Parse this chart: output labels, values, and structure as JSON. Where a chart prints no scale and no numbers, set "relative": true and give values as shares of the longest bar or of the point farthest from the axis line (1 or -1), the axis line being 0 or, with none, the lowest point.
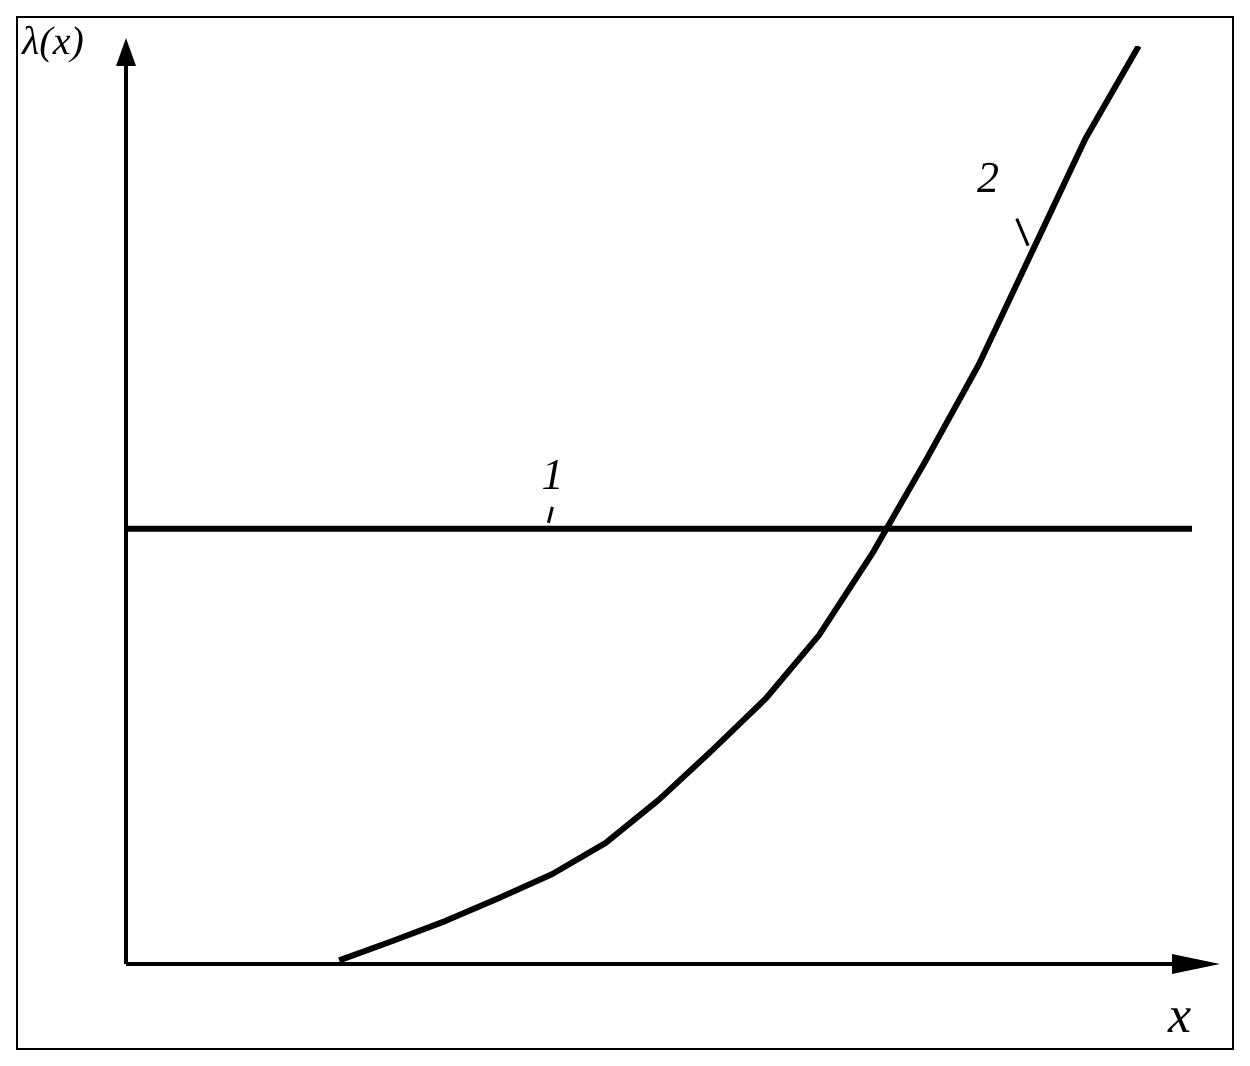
{
  "chart_data": {
    "type": "line",
    "xlabel": "x",
    "ylabel": "λ(x)",
    "relative": true,
    "marker": "none",
    "line_style": "solid",
    "categories": [
      null,
      null,
      null,
      null,
      null,
      null,
      null,
      null,
      null,
      null,
      null,
      null,
      null,
      null,
      null,
      null,
      null,
      null,
      null,
      null,
      null
    ],
    "series": [
      {
        "name": "1",
        "color": "#000000",
        "values": [
          0.474,
          0.474,
          0.474,
          0.474,
          0.474,
          0.474,
          0.474,
          0.474,
          0.474,
          0.474,
          0.474,
          0.474,
          0.474,
          0.474,
          0.474,
          0.474,
          0.474,
          0.474,
          0.474,
          0.474,
          0.474
        ]
      },
      {
        "name": "2",
        "color": "#000000",
        "values": [
          null,
          null,
          null,
          null,
          0.004,
          0.025,
          0.047,
          0.072,
          0.098,
          0.132,
          0.179,
          0.233,
          0.289,
          0.358,
          0.447,
          0.548,
          0.653,
          0.776,
          0.899,
          1,
          null
        ]
      }
    ]
  }
}
